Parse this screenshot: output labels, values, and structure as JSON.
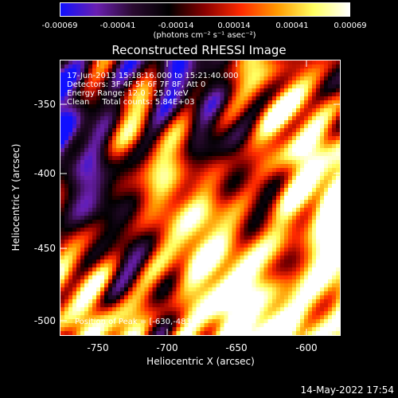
{
  "colorbar": {
    "ticks": [
      "-0.00069",
      "-0.00041",
      "-0.00014",
      "0.00014",
      "0.00041",
      "0.00069"
    ],
    "units_label": "(photons cm",
    "units_full": "(photons cm⁻² s⁻¹ asec⁻²)",
    "colors": [
      "#1010ff",
      "#6a1fb0",
      "#2a0a30",
      "#000000",
      "#8a0000",
      "#ff2a00",
      "#ff9a00",
      "#ffff60",
      "#ffffff"
    ]
  },
  "title": "Reconstructed RHESSI Image",
  "annotations": {
    "time_range": "17-Jun-2013 15:18:16.000 to 15:21:40.000",
    "detectors": "Detectors: 3F 4F 5F 6F 7F 8F, Att 0",
    "energy": "Energy Range: 12.0 - 25.0 keV",
    "clean": "Clean     Total counts: 5.84E+03",
    "peak": "Position of Peak = [-630,-483]"
  },
  "axes": {
    "xlabel": "Heliocentric X (arcsec)",
    "ylabel": "Heliocentric Y (arcsec)",
    "xticks": [
      "-750",
      "-700",
      "-650",
      "-600"
    ],
    "yticks": [
      "-350",
      "-400",
      "-450",
      "-500"
    ]
  },
  "footer": {
    "timestamp": "14-May-2022 17:54"
  }
}
